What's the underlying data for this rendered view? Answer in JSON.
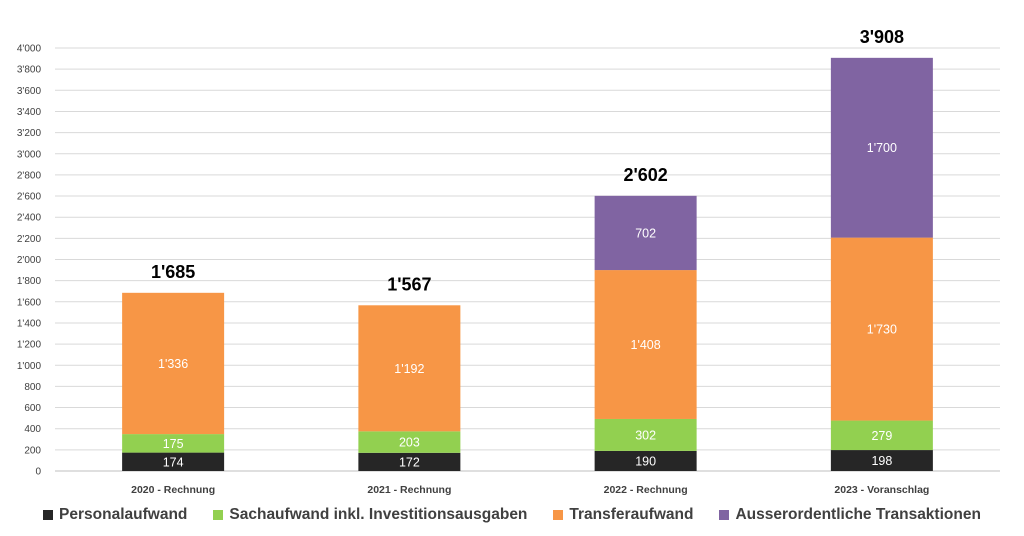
{
  "chart_data": {
    "type": "bar",
    "stacked": true,
    "categories": [
      "2020 - Rechnung",
      "2021 - Rechnung",
      "2022 - Rechnung",
      "2023 - Voranschlag"
    ],
    "series": [
      {
        "name": "Personalaufwand",
        "color": "#262626",
        "label_color": "#ffffff",
        "values": [
          174,
          172,
          190,
          198
        ],
        "labels": [
          "174",
          "172",
          "190",
          "198"
        ]
      },
      {
        "name": "Sachaufwand inkl. Investitionsausgaben",
        "color": "#92d050",
        "label_color": "#ffffff",
        "values": [
          175,
          203,
          302,
          279
        ],
        "labels": [
          "175",
          "203",
          "302",
          "279"
        ]
      },
      {
        "name": "Transferaufwand",
        "color": "#f79646",
        "label_color": "#ffffff",
        "values": [
          1336,
          1192,
          1408,
          1730
        ],
        "labels": [
          "1'336",
          "1'192",
          "1'408",
          "1'730"
        ]
      },
      {
        "name": "Ausserordentliche Transaktionen",
        "color": "#8064a2",
        "label_color": "#ffffff",
        "values": [
          0,
          0,
          702,
          1700
        ],
        "labels": [
          "",
          "",
          "702",
          "1'700"
        ]
      }
    ],
    "totals": [
      "1'685",
      "1'567",
      "2'602",
      "3'908"
    ],
    "ylim": [
      0,
      4000
    ],
    "yticks": [
      "0",
      "200",
      "400",
      "600",
      "800",
      "1'000",
      "1'200",
      "1'400",
      "1'600",
      "1'800",
      "2'000",
      "2'200",
      "2'400",
      "2'600",
      "2'800",
      "3'000",
      "3'200",
      "3'400",
      "3'600",
      "3'800",
      "4'000"
    ],
    "grid": true,
    "legend_position": "bottom"
  }
}
